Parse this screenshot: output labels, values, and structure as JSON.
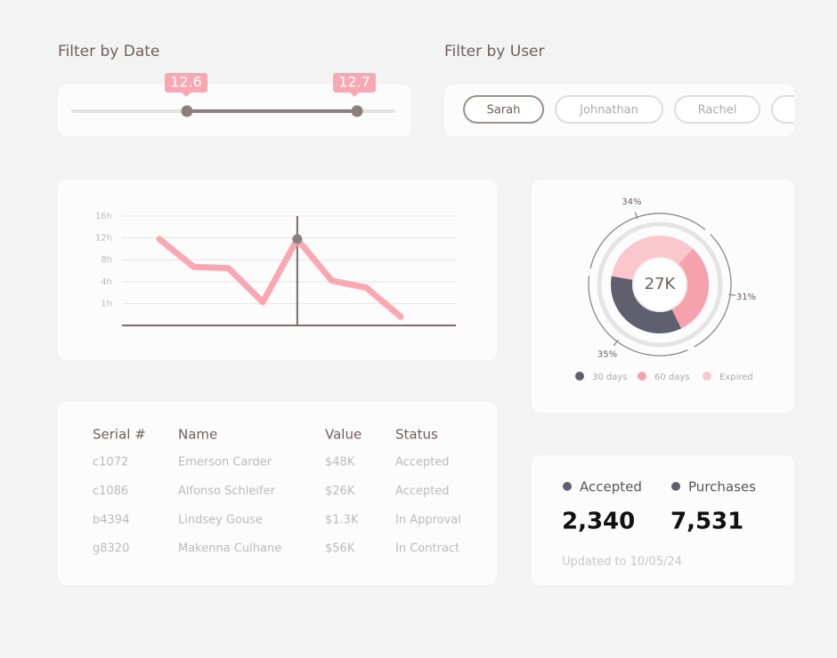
{
  "date_filter": {
    "title": "Filter by Date",
    "range_labels": [
      "12.6",
      "12.7"
    ]
  },
  "user_filter": {
    "title": "Filter by User",
    "users": [
      "Sarah",
      "Johnathan",
      "Rachel"
    ]
  },
  "activity_chart": {
    "type": "line",
    "categories": [
      null,
      null,
      null,
      null,
      null,
      null,
      null,
      null
    ],
    "values": [
      11.8,
      6.7,
      6.5,
      1.2,
      11.8,
      4.2,
      3.2,
      0.4
    ],
    "color": "#f9a8b3",
    "ylim": [
      0,
      16
    ],
    "yticks": [
      {
        "value": 1,
        "label": "1h"
      },
      {
        "value": 4,
        "label": "4h"
      },
      {
        "value": 8,
        "label": "8h"
      },
      {
        "value": 12,
        "label": "12h"
      },
      {
        "value": 16,
        "label": "16h"
      }
    ],
    "grid": true,
    "highlight_index": 4
  },
  "status_chart": {
    "type": "donut",
    "center_label": "27K",
    "categories": [
      "30 days",
      "60 days",
      "Expired"
    ],
    "values": [
      35,
      31,
      34
    ],
    "value_labels": [
      "35%",
      "31%",
      "34%"
    ],
    "colors": [
      "#5f5f6e",
      "#f6a2ad",
      "#f9c7cd"
    ]
  },
  "table": {
    "columns": [
      "Serial #",
      "Name",
      "Value",
      "Status"
    ],
    "rows": [
      [
        "c1072",
        "Emerson Carder",
        "$48K",
        "Accepted"
      ],
      [
        "c1086",
        "Alfonso Schleifer",
        "$26K",
        "Accepted"
      ],
      [
        "b4394",
        "Lindsey Gouse",
        "$1.3K",
        "In Approval"
      ],
      [
        "g8320",
        "Makenna Culhane",
        "$56K",
        "In Contract"
      ]
    ]
  },
  "stats": {
    "items": [
      {
        "label": "Accepted",
        "value": "2,340"
      },
      {
        "label": "Purchases",
        "value": "7,531"
      }
    ],
    "updated": "Updated to 10/05/24"
  }
}
